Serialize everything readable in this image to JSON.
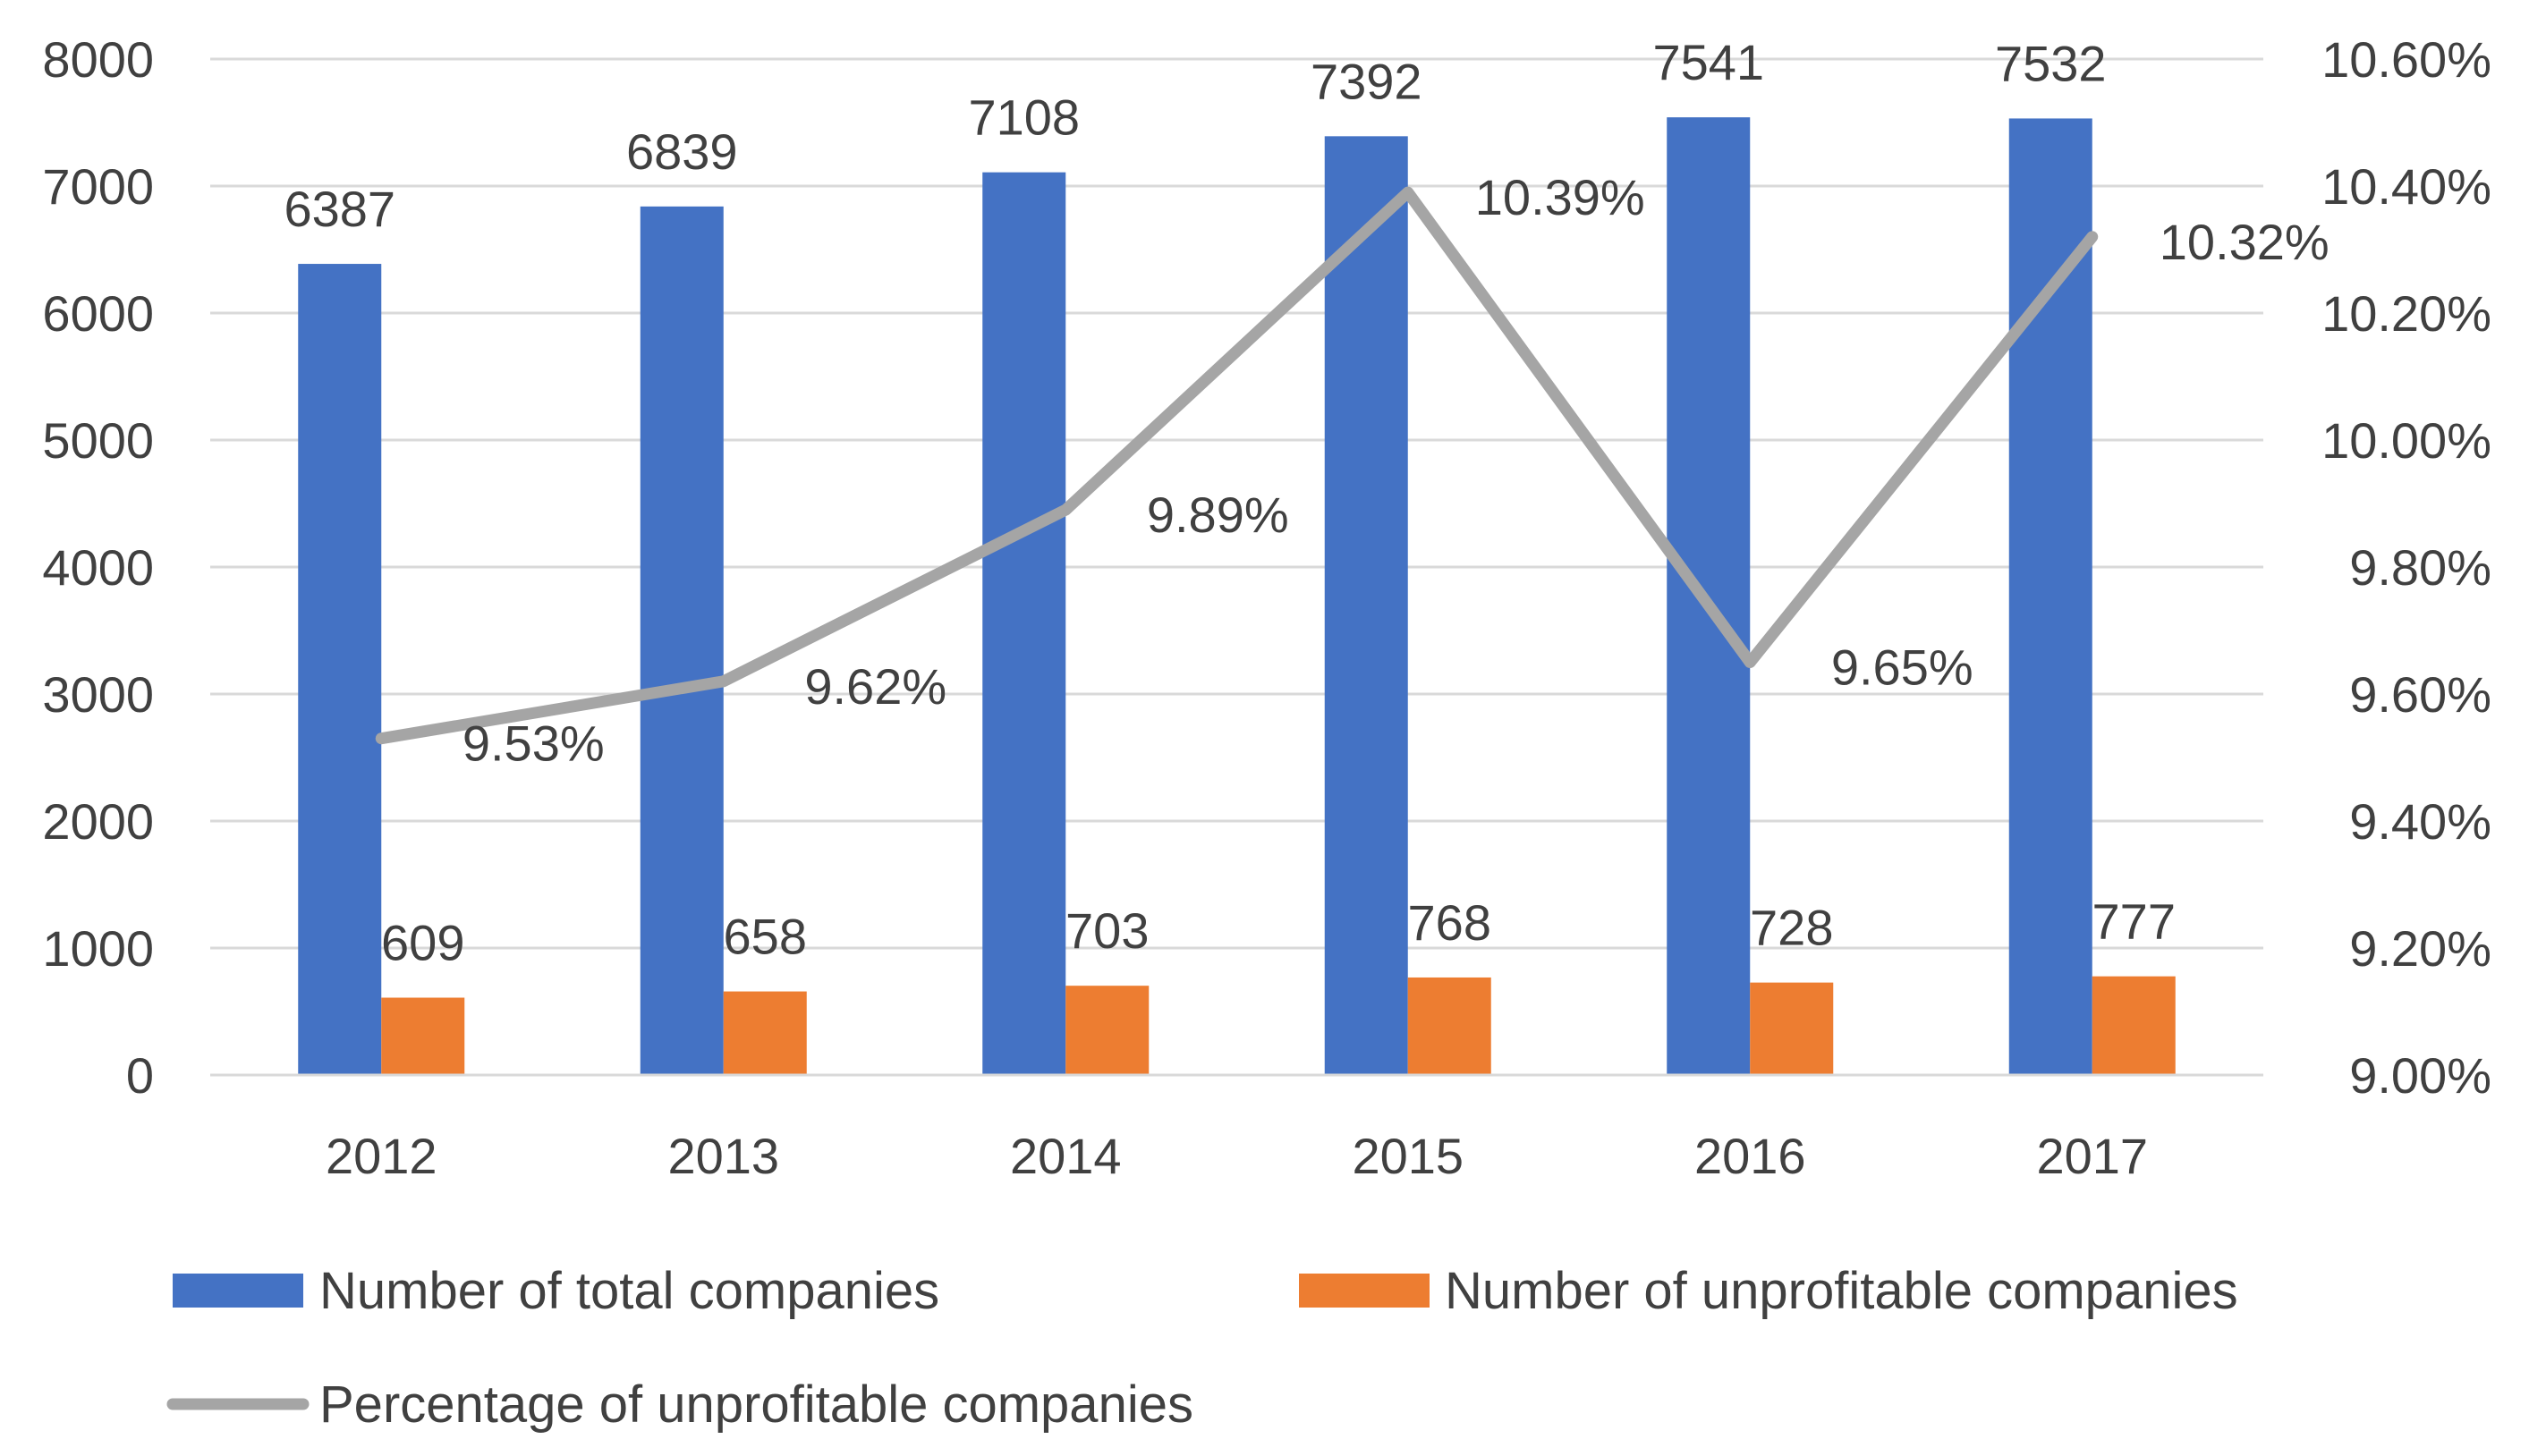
{
  "chart_data": {
    "type": "bar",
    "title": "",
    "categories": [
      "2012",
      "2013",
      "2014",
      "2015",
      "2016",
      "2017"
    ],
    "series": [
      {
        "name": "Number of total companies",
        "kind": "bar",
        "axis": "left",
        "color": "#4472C4",
        "values": [
          6387,
          6839,
          7108,
          7392,
          7541,
          7532
        ],
        "labels": [
          "6387",
          "6839",
          "7108",
          "7392",
          "7541",
          "7532"
        ]
      },
      {
        "name": "Number of unprofitable companies",
        "kind": "bar",
        "axis": "left",
        "color": "#ED7D31",
        "values": [
          609,
          658,
          703,
          768,
          728,
          777
        ],
        "labels": [
          "609",
          "658",
          "703",
          "768",
          "728",
          "777"
        ]
      },
      {
        "name": "Percentage of unprofitable companies",
        "kind": "line",
        "axis": "right",
        "color": "#A5A5A5",
        "values": [
          9.53,
          9.62,
          9.89,
          10.39,
          9.65,
          10.32
        ],
        "labels": [
          "9.53%",
          "9.62%",
          "9.89%",
          "10.39%",
          "9.65%",
          "10.32%"
        ]
      }
    ],
    "y_left": {
      "min": 0,
      "max": 8000,
      "ticks": [
        "0",
        "1000",
        "2000",
        "3000",
        "4000",
        "5000",
        "6000",
        "7000",
        "8000"
      ]
    },
    "y_right": {
      "min": 9.0,
      "max": 10.6,
      "ticks": [
        "9.00%",
        "9.20%",
        "9.40%",
        "9.60%",
        "9.80%",
        "10.00%",
        "10.20%",
        "10.40%",
        "10.60%"
      ]
    },
    "grid": true,
    "legend_position": "bottom",
    "gridline_color": "#D9D9D9"
  }
}
